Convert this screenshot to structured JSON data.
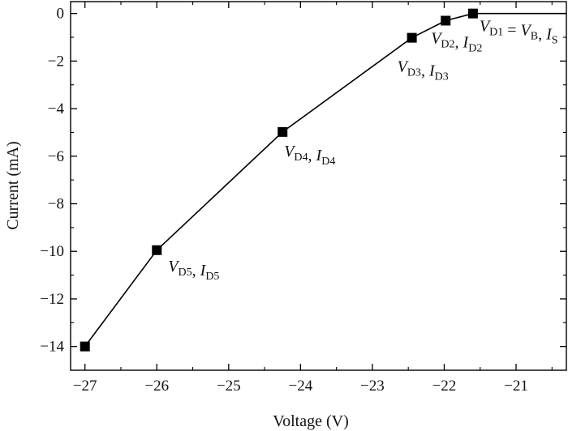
{
  "chart_data": {
    "type": "line",
    "title": "",
    "xlabel": "Voltage (V)",
    "ylabel": "Current (mA)",
    "xlim": [
      -27.2,
      -20.3
    ],
    "ylim": [
      -15,
      0.5
    ],
    "x_ticks": [
      -27,
      -26,
      -25,
      -24,
      -23,
      -22,
      -21
    ],
    "x_tick_labels": [
      "−27",
      "−26",
      "−25",
      "−24",
      "−23",
      "−22",
      "−21"
    ],
    "y_ticks": [
      0,
      -2,
      -4,
      -6,
      -8,
      -10,
      -12,
      -14
    ],
    "y_tick_labels": [
      "0",
      "−2",
      "−4",
      "−6",
      "−8",
      "−10",
      "−12",
      "−14"
    ],
    "grid": false,
    "series": [
      {
        "line_color": "#000000",
        "marker": "square",
        "x": [
          -27.0,
          -26.0,
          -24.25,
          -22.45,
          -21.98,
          -21.6,
          -20.3
        ],
        "y": [
          -14.0,
          -9.95,
          -4.98,
          -1.02,
          -0.3,
          0.0,
          0.0
        ],
        "marked": [
          true,
          true,
          true,
          true,
          true,
          true,
          false
        ]
      }
    ],
    "annotations": [
      {
        "point_index": 4,
        "parts": [
          [
            "V",
            "it"
          ],
          [
            "D2",
            "sub"
          ],
          [
            ", ",
            ""
          ],
          [
            "I",
            "it"
          ],
          [
            "D2",
            "sub"
          ]
        ]
      },
      {
        "point_index": 5,
        "parts": [
          [
            "V",
            "it"
          ],
          [
            "D1",
            "sub"
          ],
          [
            " = ",
            ""
          ],
          [
            "V",
            "it"
          ],
          [
            "B",
            "sub"
          ],
          [
            ", ",
            ""
          ],
          [
            "I",
            "it"
          ],
          [
            "S",
            "sub"
          ]
        ]
      },
      {
        "point_index": 3,
        "parts": [
          [
            "V",
            "it"
          ],
          [
            "D3",
            "sub"
          ],
          [
            ", ",
            ""
          ],
          [
            "I",
            "it"
          ],
          [
            "D3",
            "sub"
          ]
        ]
      },
      {
        "point_index": 2,
        "parts": [
          [
            "V",
            "it"
          ],
          [
            "D4",
            "sub"
          ],
          [
            ", ",
            ""
          ],
          [
            "I",
            "it"
          ],
          [
            "D4",
            "sub"
          ]
        ]
      },
      {
        "point_index": 1,
        "parts": [
          [
            "V",
            "it"
          ],
          [
            "D5",
            "sub"
          ],
          [
            ", ",
            ""
          ],
          [
            "I",
            "it"
          ],
          [
            "D5",
            "sub"
          ]
        ]
      }
    ]
  }
}
